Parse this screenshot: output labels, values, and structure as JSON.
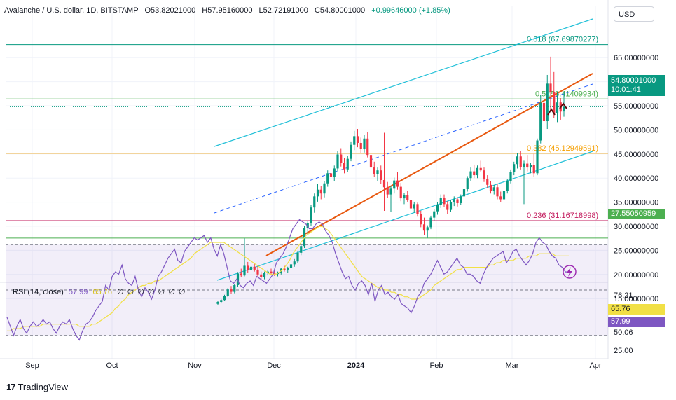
{
  "header": {
    "symbol": "Avalanche / U.S. dollar, 1D, BITSTAMP",
    "open": "O53.82021000",
    "high": "H57.95160000",
    "low": "L52.72191000",
    "close": "C54.80001000",
    "change": "+0.99646000 (+1.85%)"
  },
  "currency_button": "USD",
  "last_price": {
    "value": "54.80001000",
    "countdown": "10:01:41"
  },
  "level_tag": "27.55050959",
  "rsi": {
    "label": "RSI (14, close)",
    "value": "57.99",
    "ma_value": "65.76",
    "extras": "∅ ∅ ∅ ∅ ∅ ∅ ∅",
    "axis_labels": [
      "76.21",
      "65.76",
      "57.99",
      "50.06",
      "25.00"
    ]
  },
  "branding": "TradingView",
  "colors": {
    "up": "#089981",
    "down": "#f23645",
    "rsi": "#7e57c2",
    "rsi_ma": "#f1e046",
    "channel": "#22c0d8",
    "trendline": "#e8580f",
    "fib_0618": "#089981",
    "fib_05": "#4caf50",
    "fib_0382": "#f59f00",
    "fib_0236": "#c2185b",
    "support": "#4caf50"
  },
  "chart_data": {
    "type": "candlestick",
    "title": "Avalanche / U.S. dollar, 1D, BITSTAMP",
    "y_ticks": [
      "65.00000000",
      "60.00000000",
      "55.00000000",
      "50.00000000",
      "45.00000000",
      "40.00000000",
      "35.00000000",
      "30.00000000",
      "25.00000000",
      "20.00000000",
      "15.00000000"
    ],
    "ylim": [
      13,
      70
    ],
    "x_ticks": [
      "Sep",
      "Oct",
      "Nov",
      "Dec",
      "2024",
      "Feb",
      "Mar",
      "Apr"
    ],
    "fib_levels": [
      {
        "label": "0.618 (67.69870277)",
        "value": 67.69870277
      },
      {
        "label": "0.5 (56.41409934)",
        "value": 56.41409934
      },
      {
        "label": "0.382 (45.12949591)",
        "value": 45.12949591
      },
      {
        "label": "0.236 (31.16718998)",
        "value": 31.16718998
      }
    ],
    "horizontal_level": 27.55050959,
    "last_close": 54.80001,
    "rsi_levels": [
      70,
      50,
      30
    ],
    "candles": [
      [
        13.9,
        14.5,
        13.6,
        14.3
      ],
      [
        14.3,
        14.9,
        14.0,
        14.7
      ],
      [
        14.7,
        15.8,
        14.5,
        15.6
      ],
      [
        15.6,
        17.2,
        15.3,
        16.9
      ],
      [
        16.9,
        17.6,
        16.0,
        16.4
      ],
      [
        16.4,
        18.0,
        16.1,
        17.8
      ],
      [
        17.8,
        20.5,
        17.5,
        20.2
      ],
      [
        20.2,
        21.2,
        19.4,
        19.8
      ],
      [
        19.8,
        27.5,
        19.6,
        21.8
      ],
      [
        21.8,
        22.6,
        20.4,
        20.9
      ],
      [
        20.9,
        22.0,
        20.2,
        21.6
      ],
      [
        21.6,
        22.4,
        20.6,
        21.0
      ],
      [
        21.0,
        21.8,
        19.6,
        20.0
      ],
      [
        20.0,
        20.6,
        18.8,
        19.4
      ],
      [
        19.4,
        20.6,
        19.0,
        20.3
      ],
      [
        20.3,
        21.0,
        19.8,
        20.6
      ],
      [
        20.6,
        21.2,
        19.9,
        20.4
      ],
      [
        20.4,
        20.9,
        19.7,
        20.1
      ],
      [
        20.1,
        20.6,
        19.6,
        20.3
      ],
      [
        20.3,
        21.4,
        20.0,
        21.2
      ],
      [
        21.2,
        21.8,
        20.6,
        21.0
      ],
      [
        21.0,
        21.6,
        20.4,
        21.4
      ],
      [
        21.4,
        22.4,
        21.0,
        22.1
      ],
      [
        22.1,
        23.2,
        21.6,
        22.7
      ],
      [
        22.7,
        24.8,
        22.3,
        24.5
      ],
      [
        24.5,
        26.4,
        24.0,
        25.9
      ],
      [
        25.9,
        30.1,
        25.5,
        29.6
      ],
      [
        29.6,
        31.2,
        28.4,
        30.6
      ],
      [
        30.6,
        34.4,
        30.0,
        33.9
      ],
      [
        33.9,
        36.8,
        32.8,
        36.2
      ],
      [
        36.2,
        38.8,
        35.1,
        37.6
      ],
      [
        37.6,
        38.4,
        35.6,
        36.8
      ],
      [
        36.8,
        39.4,
        36.0,
        38.9
      ],
      [
        38.9,
        41.6,
        38.2,
        41.0
      ],
      [
        41.0,
        43.2,
        39.8,
        40.3
      ],
      [
        40.3,
        42.6,
        39.4,
        42.0
      ],
      [
        42.0,
        45.6,
        41.4,
        44.9
      ],
      [
        44.9,
        46.2,
        42.4,
        43.2
      ],
      [
        43.2,
        44.2,
        41.0,
        41.8
      ],
      [
        41.8,
        44.6,
        41.2,
        44.0
      ],
      [
        44.0,
        47.6,
        43.5,
        46.9
      ],
      [
        46.9,
        49.8,
        45.8,
        48.7
      ],
      [
        48.7,
        50.2,
        46.4,
        47.3
      ],
      [
        47.3,
        48.4,
        45.2,
        46.1
      ],
      [
        46.1,
        49.0,
        45.3,
        48.2
      ],
      [
        48.2,
        49.6,
        44.3,
        44.8
      ],
      [
        44.8,
        46.0,
        41.8,
        42.2
      ],
      [
        42.2,
        43.4,
        40.3,
        40.9
      ],
      [
        40.9,
        42.2,
        39.4,
        41.6
      ],
      [
        41.6,
        42.6,
        38.8,
        39.6
      ],
      [
        39.6,
        49.4,
        33.2,
        38.1
      ],
      [
        38.1,
        39.2,
        35.9,
        36.6
      ],
      [
        36.6,
        38.3,
        33.0,
        37.8
      ],
      [
        37.8,
        40.1,
        36.8,
        39.5
      ],
      [
        39.5,
        41.2,
        37.6,
        38.2
      ],
      [
        38.2,
        39.0,
        35.2,
        35.8
      ],
      [
        35.8,
        36.9,
        34.6,
        36.4
      ],
      [
        36.4,
        37.4,
        35.1,
        35.5
      ],
      [
        35.5,
        36.2,
        33.0,
        33.7
      ],
      [
        33.7,
        35.1,
        32.8,
        34.6
      ],
      [
        34.6,
        34.9,
        32.0,
        32.6
      ],
      [
        32.6,
        33.2,
        29.8,
        30.4
      ],
      [
        30.4,
        31.8,
        28.2,
        29.1
      ],
      [
        29.1,
        30.2,
        27.6,
        29.8
      ],
      [
        29.8,
        32.2,
        29.4,
        31.8
      ],
      [
        31.8,
        33.6,
        31.2,
        33.1
      ],
      [
        33.1,
        35.0,
        32.4,
        34.5
      ],
      [
        34.5,
        36.6,
        33.8,
        35.9
      ],
      [
        35.9,
        36.6,
        34.0,
        34.6
      ],
      [
        34.6,
        35.2,
        32.6,
        33.4
      ],
      [
        33.4,
        35.4,
        33.0,
        35.0
      ],
      [
        35.0,
        36.2,
        34.2,
        35.6
      ],
      [
        35.6,
        36.0,
        34.1,
        34.8
      ],
      [
        34.8,
        36.6,
        34.4,
        36.2
      ],
      [
        36.2,
        38.2,
        35.8,
        37.7
      ],
      [
        37.7,
        40.4,
        37.2,
        40.0
      ],
      [
        40.0,
        42.2,
        39.4,
        41.4
      ],
      [
        41.4,
        42.8,
        40.0,
        40.6
      ],
      [
        40.6,
        42.6,
        40.0,
        42.1
      ],
      [
        42.1,
        43.6,
        41.2,
        41.6
      ],
      [
        41.6,
        42.2,
        39.2,
        39.8
      ],
      [
        39.8,
        40.6,
        38.0,
        38.6
      ],
      [
        38.6,
        39.4,
        36.8,
        37.4
      ],
      [
        37.4,
        38.6,
        36.6,
        38.1
      ],
      [
        38.1,
        38.8,
        35.6,
        36.2
      ],
      [
        36.2,
        37.2,
        35.0,
        35.6
      ],
      [
        35.6,
        37.8,
        35.2,
        37.3
      ],
      [
        37.3,
        39.8,
        36.8,
        39.4
      ],
      [
        39.4,
        41.8,
        38.9,
        41.2
      ],
      [
        41.2,
        43.4,
        40.6,
        42.9
      ],
      [
        42.9,
        45.2,
        42.0,
        44.5
      ],
      [
        44.5,
        45.6,
        41.8,
        42.3
      ],
      [
        42.3,
        43.6,
        34.6,
        43.0
      ],
      [
        43.0,
        44.8,
        41.4,
        42.2
      ],
      [
        42.2,
        43.2,
        41.0,
        42.7
      ],
      [
        42.7,
        45.0,
        40.2,
        41.0
      ],
      [
        41.0,
        48.2,
        40.6,
        47.8
      ],
      [
        47.8,
        57.2,
        47.2,
        55.6
      ],
      [
        55.6,
        58.6,
        50.4,
        51.8
      ],
      [
        51.8,
        61.4,
        50.2,
        59.6
      ],
      [
        59.6,
        65.2,
        54.0,
        57.8
      ],
      [
        57.8,
        62.0,
        52.5,
        53.4
      ],
      [
        53.4,
        57.8,
        51.6,
        55.7
      ],
      [
        55.7,
        56.6,
        52.1,
        53.8
      ],
      [
        53.82,
        57.95,
        52.72,
        54.8
      ]
    ],
    "rsi_values": [
      38,
      34,
      30,
      34,
      37,
      33,
      31,
      34,
      36,
      34,
      35,
      37,
      35,
      36,
      33,
      31,
      34,
      36,
      35,
      37,
      33,
      30,
      28,
      32,
      35,
      36,
      38,
      41,
      43,
      45,
      52,
      50,
      56,
      58,
      57,
      61,
      55,
      53,
      52,
      56,
      50,
      47,
      51,
      49,
      46,
      50,
      56,
      58,
      61,
      64,
      66,
      68,
      63,
      62,
      67,
      69,
      71,
      73,
      72,
      73,
      74,
      71,
      73,
      68,
      65,
      70,
      66,
      60,
      54,
      53,
      55,
      52,
      51,
      53,
      54,
      52,
      56,
      55,
      54,
      53,
      55,
      57,
      62,
      64,
      66,
      69,
      73,
      77,
      79,
      81,
      80,
      79,
      77,
      77,
      79,
      80,
      79,
      76,
      74,
      71,
      66,
      62,
      58,
      55,
      56,
      52,
      50,
      53,
      54,
      52,
      48,
      53,
      45,
      50,
      52,
      48,
      49,
      47,
      46,
      48,
      44,
      43,
      42,
      40,
      43,
      47,
      49,
      53,
      55,
      57,
      60,
      63,
      60,
      57,
      58,
      60,
      62,
      64,
      61,
      60,
      57,
      57,
      56,
      54,
      53,
      57,
      60,
      62,
      64,
      65,
      66,
      67,
      62,
      64,
      67,
      68,
      65,
      63,
      61,
      63,
      66,
      71,
      73,
      71,
      70,
      67,
      65,
      64,
      61,
      60,
      58,
      58
    ],
    "rsi_ma_values": [
      32,
      32,
      33,
      33,
      33,
      34,
      34,
      34,
      34,
      34,
      34,
      35,
      35,
      35,
      35,
      35,
      35,
      35,
      35,
      35,
      35,
      35,
      34,
      34,
      34,
      34,
      35,
      35,
      36,
      37,
      38,
      39,
      40,
      42,
      43,
      45,
      46,
      48,
      49,
      50,
      51,
      52,
      52,
      53,
      53,
      54,
      54,
      55,
      56,
      57,
      58,
      59,
      60,
      61,
      62,
      63,
      64,
      66,
      67,
      68,
      69,
      70,
      71,
      71,
      71,
      71,
      71,
      70,
      69,
      68,
      67,
      66,
      65,
      64,
      63,
      62,
      61,
      60,
      59,
      58,
      57,
      57,
      57,
      58,
      59,
      61,
      63,
      66,
      68,
      70,
      72,
      74,
      75,
      76,
      77,
      78,
      78,
      77,
      76,
      74,
      72,
      70,
      68,
      66,
      64,
      62,
      60,
      58,
      56,
      55,
      54,
      53,
      52,
      51,
      51,
      50,
      50,
      49,
      49,
      48,
      48,
      47,
      47,
      46,
      46,
      46,
      47,
      48,
      49,
      50,
      52,
      53,
      54,
      55,
      56,
      57,
      58,
      59,
      59,
      60,
      60,
      60,
      60,
      60,
      60,
      60,
      60,
      61,
      61,
      62,
      62,
      63,
      63,
      63,
      63,
      64,
      64,
      64,
      64,
      65,
      65,
      65,
      66,
      66,
      66,
      66,
      66,
      65,
      65,
      65,
      65,
      65
    ]
  }
}
